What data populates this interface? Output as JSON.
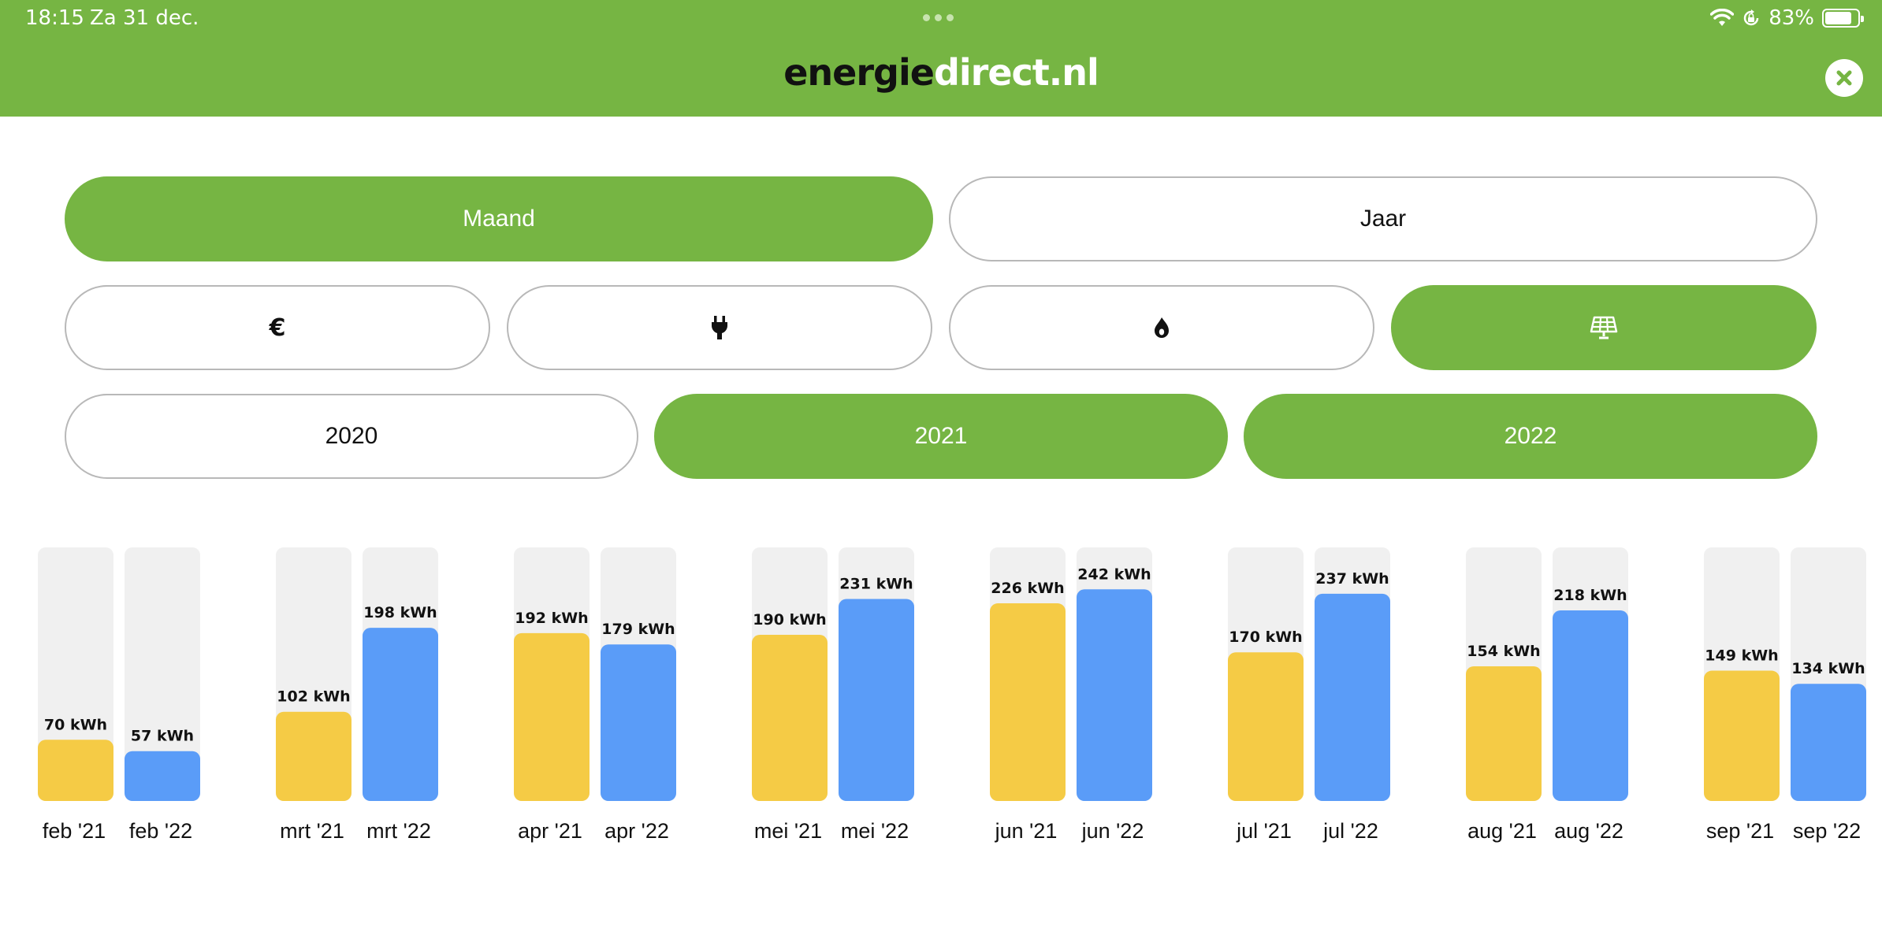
{
  "status_bar": {
    "time": "18:15",
    "date": "Za 31 dec.",
    "battery": "83%",
    "battery_level": 0.83,
    "icons": [
      "wifi-icon",
      "orientation-lock-icon",
      "battery-icon"
    ]
  },
  "header": {
    "logo_part1": "energie",
    "logo_part2": "direct.nl",
    "close_icon": "close-icon"
  },
  "period_toggle": {
    "options": [
      {
        "label": "Maand",
        "active": true
      },
      {
        "label": "Jaar",
        "active": false
      }
    ]
  },
  "type_toggle": {
    "options": [
      {
        "icon": "euro-icon",
        "symbol": "€",
        "active": false
      },
      {
        "icon": "plug-icon",
        "active": false
      },
      {
        "icon": "flame-icon",
        "active": false
      },
      {
        "icon": "solar-panel-icon",
        "active": true
      }
    ]
  },
  "year_toggle": {
    "options": [
      {
        "label": "2020",
        "active": false
      },
      {
        "label": "2021",
        "active": true
      },
      {
        "label": "2022",
        "active": true
      }
    ]
  },
  "colors": {
    "brand_green": "#76b543",
    "series_2021": "#f5cb45",
    "series_2022": "#5a9cf8",
    "bar_track": "#f0f0f0"
  },
  "chart_data": {
    "type": "bar",
    "unit": "kWh",
    "ylim": [
      0,
      290
    ],
    "groups": [
      {
        "labels": [
          "feb '21",
          "feb '22"
        ],
        "values": [
          70,
          57
        ]
      },
      {
        "labels": [
          "mrt '21",
          "mrt '22"
        ],
        "values": [
          102,
          198
        ]
      },
      {
        "labels": [
          "apr '21",
          "apr '22"
        ],
        "values": [
          192,
          179
        ]
      },
      {
        "labels": [
          "mei '21",
          "mei '22"
        ],
        "values": [
          190,
          231
        ]
      },
      {
        "labels": [
          "jun '21",
          "jun '22"
        ],
        "values": [
          226,
          242
        ]
      },
      {
        "labels": [
          "jul '21",
          "jul '22"
        ],
        "values": [
          170,
          237
        ]
      },
      {
        "labels": [
          "aug '21",
          "aug '22"
        ],
        "values": [
          154,
          218
        ]
      },
      {
        "labels": [
          "sep '21",
          "sep '22"
        ],
        "values": [
          149,
          134
        ]
      }
    ],
    "value_labels": [
      [
        "70 kWh",
        "57 kWh"
      ],
      [
        "102 kWh",
        "198 kWh"
      ],
      [
        "192 kWh",
        "179 kWh"
      ],
      [
        "190 kWh",
        "231 kWh"
      ],
      [
        "226 kWh",
        "242 kWh"
      ],
      [
        "170 kWh",
        "237 kWh"
      ],
      [
        "154 kWh",
        "218 kWh"
      ],
      [
        "149 kWh",
        "134 kWh"
      ]
    ],
    "grid": false,
    "legend": "none"
  }
}
